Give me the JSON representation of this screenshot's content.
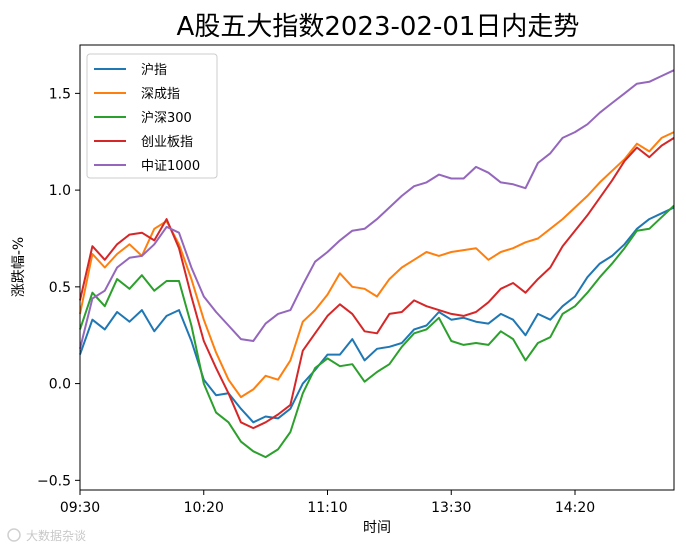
{
  "chart_data": {
    "type": "line",
    "title": "A股五大指数2023-02-01日内走势",
    "xlabel": "时间",
    "ylabel": "涨跌幅-%",
    "x_ticks": [
      "09:30",
      "10:20",
      "11:10",
      "13:30",
      "14:20"
    ],
    "x_tick_positions": [
      0,
      50,
      100,
      150,
      200
    ],
    "xlim": [
      0,
      240
    ],
    "y_ticks": [
      "−0.5",
      "0.0",
      "0.5",
      "1.0",
      "1.5"
    ],
    "y_tick_values": [
      -0.5,
      0.0,
      0.5,
      1.0,
      1.5
    ],
    "ylim": [
      -0.55,
      1.75
    ],
    "grid": false,
    "legend_position": "upper-left",
    "x": [
      0,
      5,
      10,
      15,
      20,
      25,
      30,
      35,
      40,
      45,
      50,
      55,
      60,
      65,
      70,
      75,
      80,
      85,
      90,
      95,
      100,
      105,
      110,
      115,
      120,
      125,
      130,
      135,
      140,
      145,
      150,
      155,
      160,
      165,
      170,
      175,
      180,
      185,
      190,
      195,
      200,
      205,
      210,
      215,
      220,
      225,
      230,
      235,
      240
    ],
    "series": [
      {
        "name": "沪指",
        "color": "#1f77b4",
        "values": [
          0.15,
          0.33,
          0.28,
          0.37,
          0.32,
          0.38,
          0.27,
          0.35,
          0.38,
          0.22,
          0.02,
          -0.06,
          -0.05,
          -0.13,
          -0.2,
          -0.17,
          -0.18,
          -0.13,
          0.0,
          0.07,
          0.15,
          0.15,
          0.23,
          0.12,
          0.18,
          0.19,
          0.21,
          0.28,
          0.3,
          0.37,
          0.33,
          0.34,
          0.32,
          0.31,
          0.36,
          0.33,
          0.25,
          0.36,
          0.33,
          0.4,
          0.45,
          0.55,
          0.62,
          0.66,
          0.72,
          0.8,
          0.85,
          0.88,
          0.91
        ]
      },
      {
        "name": "深成指",
        "color": "#ff7f0e",
        "values": [
          0.36,
          0.67,
          0.6,
          0.67,
          0.72,
          0.66,
          0.8,
          0.84,
          0.72,
          0.54,
          0.33,
          0.16,
          0.02,
          -0.07,
          -0.03,
          0.04,
          0.02,
          0.12,
          0.32,
          0.38,
          0.46,
          0.57,
          0.5,
          0.49,
          0.45,
          0.54,
          0.6,
          0.64,
          0.68,
          0.66,
          0.68,
          0.69,
          0.7,
          0.64,
          0.68,
          0.7,
          0.73,
          0.75,
          0.8,
          0.85,
          0.91,
          0.97,
          1.04,
          1.1,
          1.16,
          1.24,
          1.2,
          1.27,
          1.3
        ]
      },
      {
        "name": "沪深300",
        "color": "#2ca02c",
        "values": [
          0.28,
          0.47,
          0.4,
          0.54,
          0.49,
          0.56,
          0.48,
          0.53,
          0.53,
          0.3,
          0.0,
          -0.15,
          -0.2,
          -0.3,
          -0.35,
          -0.38,
          -0.34,
          -0.25,
          -0.05,
          0.08,
          0.13,
          0.09,
          0.1,
          0.01,
          0.06,
          0.1,
          0.19,
          0.26,
          0.28,
          0.34,
          0.22,
          0.2,
          0.21,
          0.2,
          0.27,
          0.23,
          0.12,
          0.21,
          0.24,
          0.36,
          0.4,
          0.47,
          0.55,
          0.62,
          0.7,
          0.79,
          0.8,
          0.86,
          0.92
        ]
      },
      {
        "name": "创业板指",
        "color": "#d62728",
        "values": [
          0.43,
          0.71,
          0.64,
          0.72,
          0.77,
          0.78,
          0.74,
          0.85,
          0.7,
          0.45,
          0.22,
          0.08,
          -0.05,
          -0.2,
          -0.23,
          -0.2,
          -0.16,
          -0.11,
          0.17,
          0.26,
          0.35,
          0.41,
          0.36,
          0.27,
          0.26,
          0.36,
          0.37,
          0.43,
          0.4,
          0.38,
          0.36,
          0.35,
          0.37,
          0.42,
          0.49,
          0.52,
          0.47,
          0.54,
          0.6,
          0.71,
          0.79,
          0.87,
          0.96,
          1.05,
          1.15,
          1.22,
          1.17,
          1.23,
          1.27
        ]
      },
      {
        "name": "中证1000",
        "color": "#9467bd",
        "values": [
          0.18,
          0.44,
          0.48,
          0.6,
          0.65,
          0.66,
          0.72,
          0.81,
          0.78,
          0.6,
          0.45,
          0.37,
          0.3,
          0.23,
          0.22,
          0.31,
          0.36,
          0.38,
          0.51,
          0.63,
          0.68,
          0.74,
          0.79,
          0.8,
          0.85,
          0.91,
          0.97,
          1.02,
          1.04,
          1.08,
          1.06,
          1.06,
          1.12,
          1.09,
          1.04,
          1.03,
          1.01,
          1.14,
          1.19,
          1.27,
          1.3,
          1.34,
          1.4,
          1.45,
          1.5,
          1.55,
          1.56,
          1.59,
          1.62
        ]
      }
    ]
  },
  "watermark": "大数据杂谈"
}
